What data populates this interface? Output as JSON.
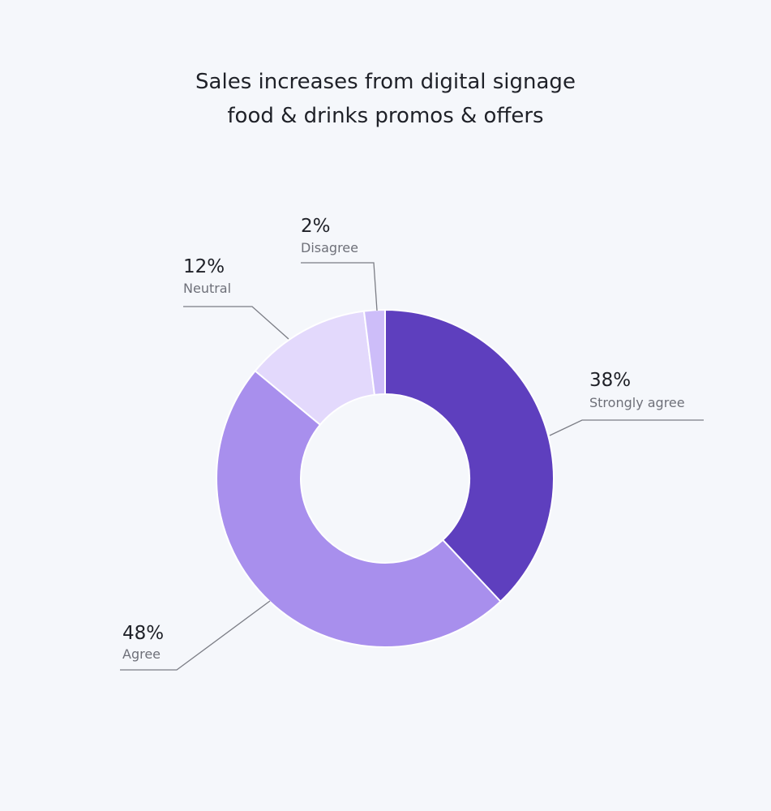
{
  "chart_data": {
    "type": "pie",
    "title_lines": [
      "Sales increases from digital signage",
      "food & drinks promos & offers"
    ],
    "slices": [
      {
        "label": "Strongly agree",
        "value": 38,
        "value_label": "38%",
        "color": "#5e3fbe"
      },
      {
        "label": "Agree",
        "value": 48,
        "value_label": "48%",
        "color": "#a88fed"
      },
      {
        "label": "Neutral",
        "value": 12,
        "value_label": "12%",
        "color": "#e3d9fc"
      },
      {
        "label": "Disagree",
        "value": 2,
        "value_label": "2%",
        "color": "#cdbdf9"
      }
    ],
    "donut": true,
    "start": "12 o'clock",
    "direction": "clockwise",
    "legend": "none",
    "labels": "outside with leader lines"
  }
}
